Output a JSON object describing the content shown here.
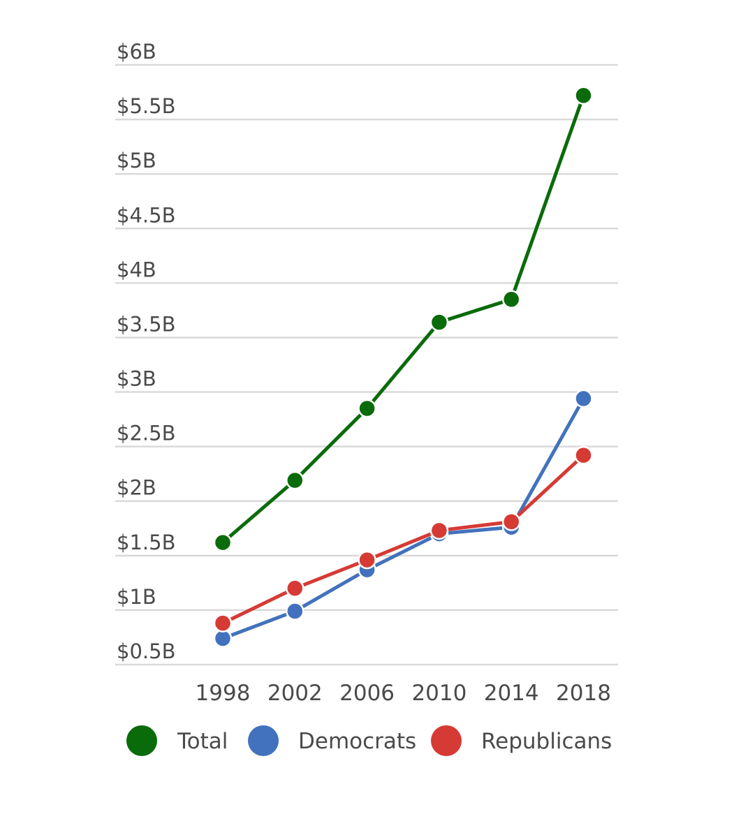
{
  "chart_data": {
    "type": "line",
    "categories": [
      "1998",
      "2002",
      "2006",
      "2010",
      "2014",
      "2018"
    ],
    "series": [
      {
        "name": "Total",
        "color": "#0a6b0a",
        "values": [
          1.62,
          2.19,
          2.85,
          3.64,
          3.85,
          5.72
        ]
      },
      {
        "name": "Democrats",
        "color": "#4272bd",
        "values": [
          0.74,
          0.99,
          1.37,
          1.7,
          1.76,
          2.94
        ]
      },
      {
        "name": "Republicans",
        "color": "#d63a35",
        "values": [
          0.88,
          1.2,
          1.46,
          1.73,
          1.81,
          2.42
        ]
      }
    ],
    "yticks": [
      0.5,
      1,
      1.5,
      2,
      2.5,
      3,
      3.5,
      4,
      4.5,
      5,
      5.5,
      6
    ],
    "ytick_labels": [
      "$0.5B",
      "$1B",
      "$1.5B",
      "$2B",
      "$2.5B",
      "$3B",
      "$3.5B",
      "$4B",
      "$4.5B",
      "$5B",
      "$5.5B",
      "$6B"
    ],
    "ylim": [
      0.5,
      6
    ],
    "xlabel": "",
    "ylabel": "",
    "title": "",
    "grid": true,
    "legend_position": "bottom"
  }
}
